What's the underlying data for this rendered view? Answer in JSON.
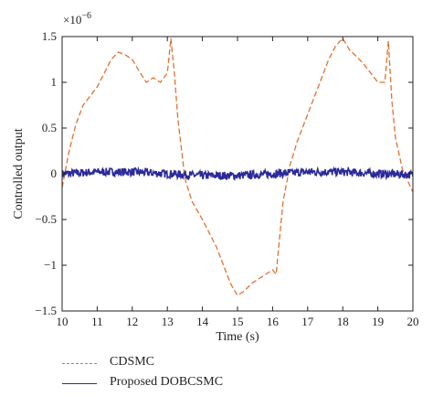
{
  "chart_data": {
    "type": "line",
    "title": "",
    "xlabel": "Time (s)",
    "ylabel": "Controlled output",
    "y_scale_label": "×10",
    "y_scale_exponent": "−6",
    "xlim": [
      10,
      20
    ],
    "ylim": [
      -1.5,
      1.5
    ],
    "x_ticks": [
      "10",
      "11",
      "12",
      "13",
      "14",
      "15",
      "16",
      "17",
      "18",
      "19",
      "20"
    ],
    "y_ticks": [
      "1.5",
      "1",
      "0.5",
      "0",
      "−0.5",
      "−1",
      "−1.5"
    ],
    "grid": false,
    "legend_position": "below",
    "series": [
      {
        "name": "CDSMC",
        "color": "#e07030",
        "style": "dashed",
        "x": [
          10.0,
          10.2,
          10.4,
          10.6,
          10.8,
          11.0,
          11.2,
          11.4,
          11.6,
          11.8,
          12.0,
          12.2,
          12.4,
          12.6,
          12.8,
          13.0,
          13.1,
          13.2,
          13.3,
          13.5,
          13.7,
          14.0,
          14.2,
          14.4,
          14.6,
          14.8,
          15.0,
          15.2,
          15.4,
          15.6,
          15.8,
          16.0,
          16.1,
          16.2,
          16.3,
          16.5,
          16.7,
          17.0,
          17.2,
          17.4,
          17.6,
          17.8,
          18.0,
          18.2,
          18.4,
          18.6,
          18.8,
          19.0,
          19.2,
          19.3,
          19.4,
          19.5,
          19.7,
          20.0
        ],
        "y": [
          -0.15,
          0.25,
          0.55,
          0.75,
          0.85,
          0.95,
          1.1,
          1.25,
          1.33,
          1.3,
          1.25,
          1.12,
          1.0,
          1.05,
          1.0,
          1.1,
          1.48,
          1.1,
          0.6,
          -0.05,
          -0.3,
          -0.5,
          -0.65,
          -0.8,
          -1.0,
          -1.2,
          -1.33,
          -1.28,
          -1.2,
          -1.15,
          -1.1,
          -1.05,
          -1.1,
          -0.7,
          -0.3,
          0.1,
          0.35,
          0.65,
          0.85,
          1.05,
          1.25,
          1.4,
          1.48,
          1.35,
          1.28,
          1.2,
          1.1,
          1.0,
          1.0,
          1.45,
          0.8,
          0.4,
          0.05,
          -0.2
        ]
      },
      {
        "name": "Proposed DOBCSMC",
        "color": "#2b2a9a",
        "style": "solid",
        "x": [
          10.0,
          11.0,
          12.0,
          13.0,
          14.0,
          15.0,
          16.0,
          17.0,
          18.0,
          19.0,
          20.0
        ],
        "y": [
          0.0,
          0.02,
          0.02,
          0.0,
          -0.02,
          -0.02,
          0.0,
          0.02,
          0.02,
          0.0,
          -0.01
        ]
      }
    ]
  }
}
